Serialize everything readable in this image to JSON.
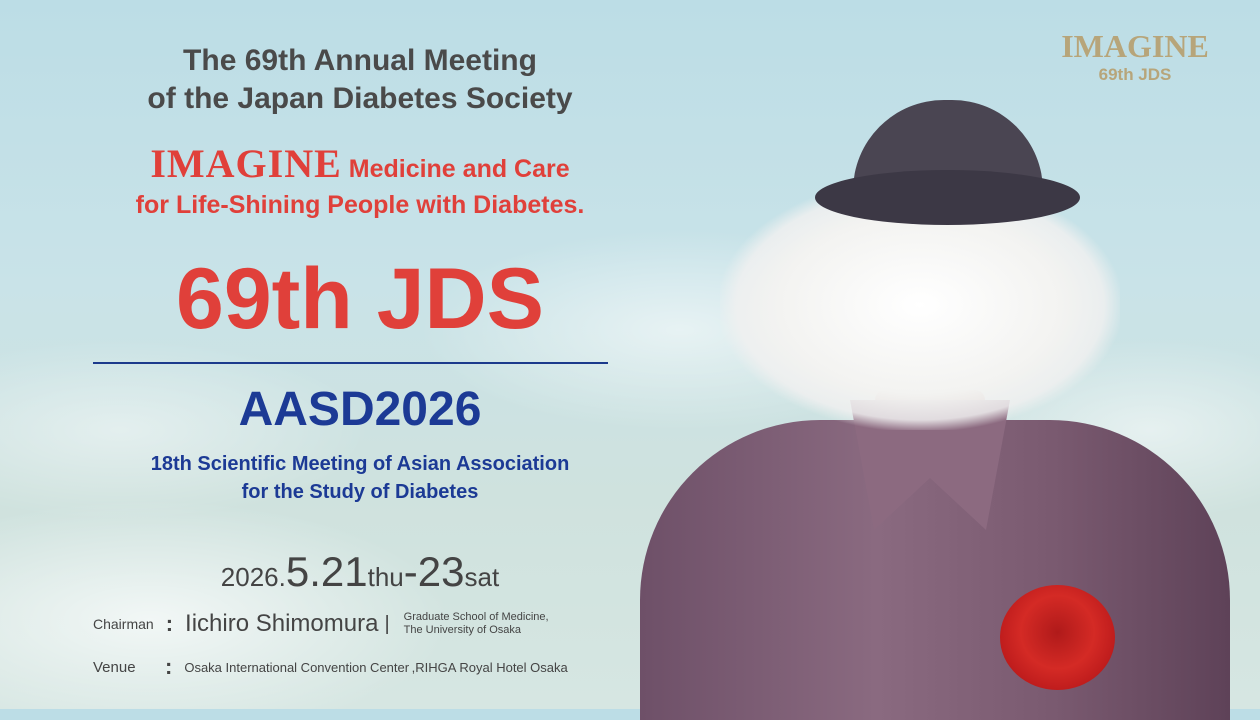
{
  "header": {
    "title_line1": "The 69th Annual Meeting",
    "title_line2": "of the Japan Diabetes Society"
  },
  "slogan": {
    "imagine": "IMAGINE",
    "line1_rest": " Medicine and Care",
    "line2": "for Life-Shining People with Diabetes."
  },
  "main_title": "69th JDS",
  "aasd": {
    "title": "AASD2026",
    "sub_line1": "18th Scientific Meeting of Asian Association",
    "sub_line2": "for the Study of Diabetes"
  },
  "date": {
    "year": "2026.",
    "start": "5.21",
    "start_day": "thu",
    "dash": "-",
    "end": "23",
    "end_day": "sat"
  },
  "chairman": {
    "label": "Chairman",
    "colon": ":",
    "name": "Iichiro Shimomura",
    "separator": "|",
    "aff_line1": "Graduate School of Medicine,",
    "aff_line2": "The University of Osaka"
  },
  "venue": {
    "label": "Venue",
    "colon": ":",
    "value": "Osaka International Convention Center ,RIHGA Royal Hotel Osaka"
  },
  "logo": {
    "imagine": "IMAGINE",
    "sub": "69th JDS"
  },
  "colors": {
    "red": "#e0403a",
    "navy": "#1c3a95",
    "gold": "#b7a57a",
    "gray": "#4a4a4a"
  }
}
